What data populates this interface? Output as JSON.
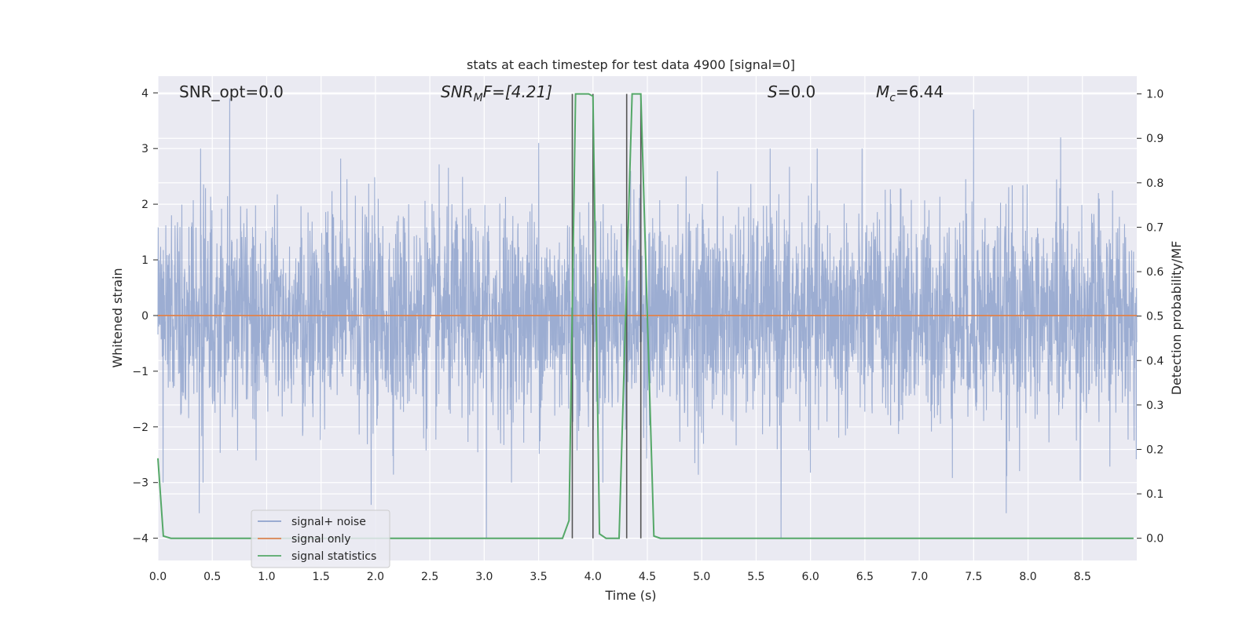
{
  "chart_data": {
    "type": "line",
    "title": "stats at each timestep for test data 4900 [signal=0]",
    "xlabel": "Time (s)",
    "ylabel": "Whitened strain",
    "y2label": "Detection probability/MF",
    "xlim": [
      0.0,
      9.0
    ],
    "ylim": [
      -4.4,
      4.3
    ],
    "y2lim": [
      -0.05,
      1.04
    ],
    "xticks": [
      "0.0",
      "0.5",
      "1.0",
      "1.5",
      "2.0",
      "2.5",
      "3.0",
      "3.5",
      "4.0",
      "4.5",
      "5.0",
      "5.5",
      "6.0",
      "6.5",
      "7.0",
      "7.5",
      "8.0",
      "8.5"
    ],
    "yticks": [
      "4",
      "3",
      "2",
      "1",
      "0",
      "−1",
      "−2",
      "−3",
      "−4"
    ],
    "y2ticks": [
      "1.0",
      "0.9",
      "0.8",
      "0.7",
      "0.6",
      "0.5",
      "0.4",
      "0.3",
      "0.2",
      "0.1",
      "0.0"
    ],
    "grid": true,
    "legend_position": "lower-left",
    "annotations": {
      "snr_opt": "SNR_opt=0.0",
      "snr_mf_sym": "SNR",
      "snr_mf_sub": "M",
      "snr_mf_rest": "F=[4.21]",
      "s_sym": "S",
      "s_rest": "=0.0",
      "mc_sym": "M",
      "mc_sub": "c",
      "mc_rest": "=6.44"
    },
    "series": [
      {
        "name": "signal+ noise",
        "color": "#8ea2cc",
        "style": "dense noise, amplitude roughly ±2.5 with peaks to 3.9 and −4.0",
        "peaks": [
          {
            "x": 0.66,
            "y": 3.9
          },
          {
            "x": 3.02,
            "y": -4.0
          },
          {
            "x": 3.5,
            "y": 3.1
          },
          {
            "x": 5.73,
            "y": -4.0
          },
          {
            "x": 7.5,
            "y": 3.7
          },
          {
            "x": 8.3,
            "y": 3.2
          },
          {
            "x": 7.8,
            "y": -3.55
          },
          {
            "x": 0.38,
            "y": -3.55
          },
          {
            "x": 1.96,
            "y": -3.4
          }
        ]
      },
      {
        "name": "signal only",
        "color": "#dd8452",
        "x": [
          0.0,
          9.0
        ],
        "y": [
          0.0,
          0.0
        ]
      },
      {
        "name": "signal statistics",
        "color": "#55a868",
        "x": [
          0.0,
          0.05,
          0.12,
          0.5,
          1.0,
          2.0,
          3.0,
          3.72,
          3.78,
          3.84,
          3.9,
          3.96,
          4.0,
          4.06,
          4.12,
          4.24,
          4.3,
          4.36,
          4.44,
          4.5,
          4.56,
          4.62,
          5.0,
          6.0,
          7.0,
          8.0,
          8.97
        ],
        "y": [
          0.18,
          0.005,
          0.0,
          0.0,
          0.0,
          0.0,
          0.0,
          0.0,
          0.04,
          1.0,
          1.0,
          1.0,
          0.995,
          0.01,
          0.0,
          0.0,
          0.5,
          1.0,
          1.0,
          0.5,
          0.005,
          0.0,
          0.0,
          0.0,
          0.0,
          0.0,
          0.0
        ]
      }
    ],
    "vlines": [
      3.81,
      4.0,
      4.31,
      4.44
    ]
  }
}
